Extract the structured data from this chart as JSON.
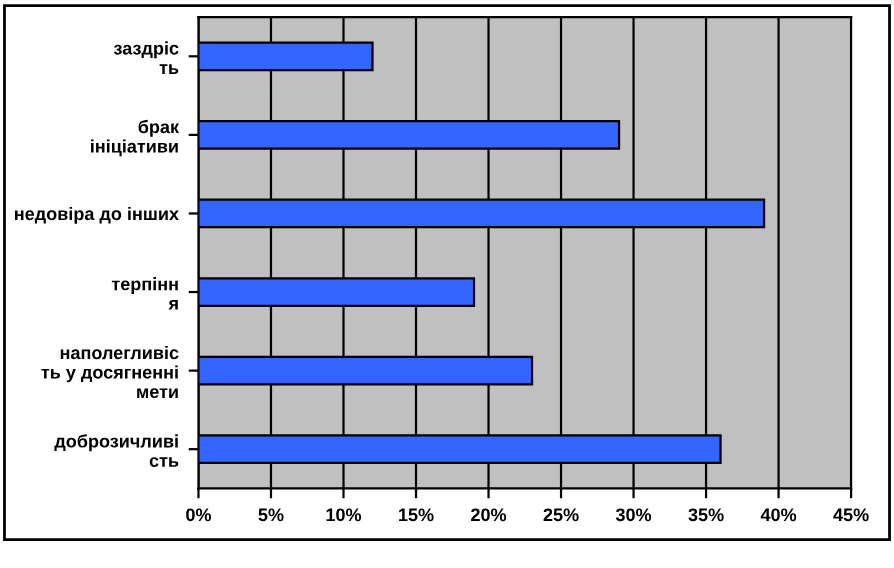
{
  "chart_data": {
    "type": "bar",
    "orientation": "horizontal",
    "categories": [
      "заздріс\nть",
      "брак\nініціативи",
      "недовіра до інших",
      "терпінн\nя",
      "наполегливіс\nть у досягненні\nмети",
      "доброзичливі\nсть"
    ],
    "values": [
      12,
      29,
      39,
      19,
      23,
      36
    ],
    "color": "#3366ff",
    "xlim": [
      0,
      45
    ],
    "xticks": [
      {
        "value": 0,
        "label": "0%"
      },
      {
        "value": 5,
        "label": "5%"
      },
      {
        "value": 10,
        "label": "10%"
      },
      {
        "value": 15,
        "label": "15%"
      },
      {
        "value": 20,
        "label": "20%"
      },
      {
        "value": 25,
        "label": "25%"
      },
      {
        "value": 30,
        "label": "30%"
      },
      {
        "value": 35,
        "label": "35%"
      },
      {
        "value": 40,
        "label": "40%"
      },
      {
        "value": 45,
        "label": "45%"
      }
    ],
    "grid": "x",
    "legend": false
  }
}
